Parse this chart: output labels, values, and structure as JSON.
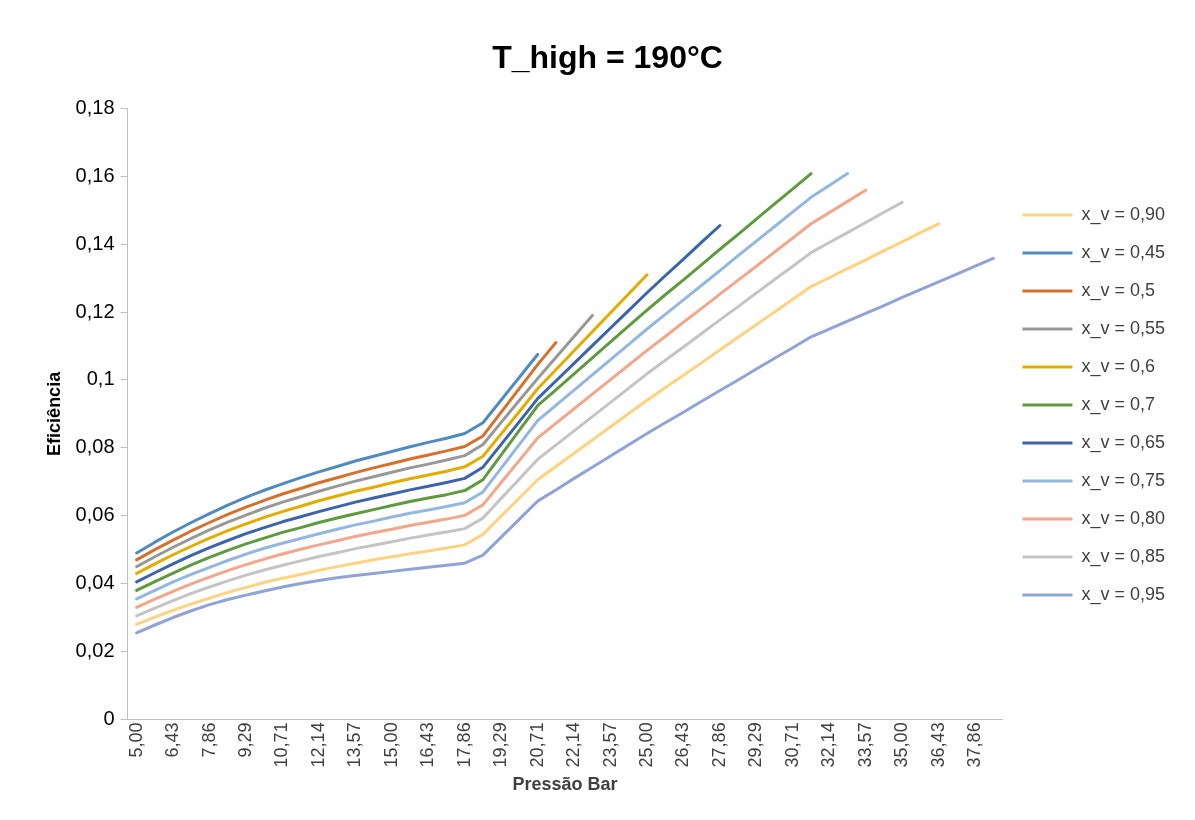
{
  "chart_data": {
    "type": "line",
    "title": "T_high = 190°C",
    "xlabel": "Pressão Bar",
    "ylabel": "Eficiência",
    "categories": [
      "5,00",
      null,
      "6,43",
      null,
      "7,86",
      null,
      "9,29",
      null,
      "10,71",
      null,
      "12,14",
      null,
      "13,57",
      null,
      "15,00",
      null,
      "16,43",
      null,
      "17,86",
      null,
      "19,29",
      null,
      "20,71",
      null,
      "22,14",
      null,
      "23,57",
      null,
      "25,00",
      null,
      "26,43",
      null,
      "27,86",
      null,
      "29,29",
      null,
      "30,71",
      null,
      "32,14",
      null,
      "33,57",
      null,
      "35,00",
      null,
      "36,43",
      null,
      "37,86",
      null
    ],
    "ylim": [
      0,
      0.18
    ],
    "yticks": [
      0,
      {
        "value": 0.02,
        "label": "0,02"
      },
      {
        "value": 0.04,
        "label": "0,04"
      },
      {
        "value": 0.06,
        "label": "0,06"
      },
      {
        "value": 0.08,
        "label": "0,08"
      },
      {
        "value": 0.1,
        "label": "0,1"
      },
      {
        "value": 0.12,
        "label": "0,12"
      },
      {
        "value": 0.14,
        "label": "0,14"
      },
      {
        "value": 0.16,
        "label": "0,16"
      },
      {
        "value": 0.18,
        "label": "0,18"
      }
    ],
    "grid": false,
    "legend": "right",
    "marker": "none",
    "line_style": "solid",
    "series": [
      {
        "name": "x_v = 0,90",
        "color": "#ffd280",
        "values": [
          0.028,
          0.0301,
          0.0321,
          0.034,
          0.0357,
          0.0374,
          0.0389,
          0.0403,
          0.0416,
          0.0427,
          0.0439,
          0.045,
          0.046,
          0.047,
          0.0479,
          0.0488,
          0.0496,
          0.0505,
          0.0514,
          0.0545,
          0.0599,
          0.0652,
          0.0706,
          0.0745,
          0.0784,
          0.0823,
          0.0862,
          0.0901,
          0.094,
          0.0977,
          0.1014,
          0.1051,
          0.1088,
          0.1126,
          0.1163,
          0.12,
          0.1238,
          0.1275,
          0.1301,
          0.1328,
          0.1354,
          0.1381,
          0.1407,
          0.1434,
          0.146,
          null,
          null,
          null
        ]
      },
      {
        "name": "x_v = 0,45",
        "color": "#4f8bc0",
        "values": [
          0.049,
          0.0522,
          0.0552,
          0.058,
          0.0606,
          0.0631,
          0.0654,
          0.0675,
          0.0694,
          0.0712,
          0.0729,
          0.0745,
          0.0761,
          0.0775,
          0.0789,
          0.0803,
          0.0816,
          0.0828,
          0.0842,
          0.0874,
          0.0941,
          0.1008,
          0.1075,
          null,
          null,
          null,
          null,
          null,
          null,
          null,
          null,
          null,
          null,
          null,
          null,
          null,
          null,
          null,
          null,
          null,
          null,
          null,
          null,
          null,
          null,
          null,
          null,
          null
        ]
      },
      {
        "name": "x_v = 0,5",
        "color": "#d8702c",
        "values": [
          0.047,
          0.05,
          0.0528,
          0.0555,
          0.058,
          0.0604,
          0.0625,
          0.0645,
          0.0664,
          0.068,
          0.0697,
          0.0712,
          0.0727,
          0.0741,
          0.0754,
          0.0767,
          0.0779,
          0.0791,
          0.0804,
          0.0835,
          0.0905,
          0.0975,
          0.1045,
          0.111,
          null,
          null,
          null,
          null,
          null,
          null,
          null,
          null,
          null,
          null,
          null,
          null,
          null,
          null,
          null,
          null,
          null,
          null,
          null,
          null,
          null,
          null,
          null,
          null
        ]
      },
      {
        "name": "x_v = 0,55",
        "color": "#989898",
        "values": [
          0.045,
          0.0479,
          0.0507,
          0.0533,
          0.0558,
          0.0581,
          0.0602,
          0.0622,
          0.064,
          0.0656,
          0.0672,
          0.0687,
          0.0702,
          0.0715,
          0.0728,
          0.0741,
          0.0752,
          0.0764,
          0.0777,
          0.081,
          0.0875,
          0.094,
          0.1004,
          0.1066,
          0.1128,
          0.119,
          null,
          null,
          null,
          null,
          null,
          null,
          null,
          null,
          null,
          null,
          null,
          null,
          null,
          null,
          null,
          null,
          null,
          null,
          null,
          null,
          null,
          null
        ]
      },
      {
        "name": "x_v = 0,6",
        "color": "#e4ab00",
        "values": [
          0.043,
          0.0458,
          0.0485,
          0.051,
          0.0534,
          0.0556,
          0.0576,
          0.0595,
          0.0612,
          0.0628,
          0.0644,
          0.0658,
          0.0672,
          0.0684,
          0.0697,
          0.0709,
          0.072,
          0.0731,
          0.0744,
          0.0775,
          0.0841,
          0.0907,
          0.0974,
          0.103,
          0.1086,
          0.1142,
          0.1198,
          0.1254,
          0.131,
          null,
          null,
          null,
          null,
          null,
          null,
          null,
          null,
          null,
          null,
          null,
          null,
          null,
          null,
          null,
          null,
          null,
          null,
          null
        ]
      },
      {
        "name": "x_v = 0,7",
        "color": "#5f9a3e",
        "values": [
          0.038,
          0.0406,
          0.0431,
          0.0455,
          0.0477,
          0.0498,
          0.0517,
          0.0534,
          0.0551,
          0.0565,
          0.058,
          0.0593,
          0.0606,
          0.0618,
          0.063,
          0.0642,
          0.0652,
          0.0662,
          0.0674,
          0.0706,
          0.0779,
          0.0852,
          0.0924,
          0.0971,
          0.1018,
          0.1065,
          0.1112,
          0.1159,
          0.1206,
          0.1251,
          0.1295,
          0.134,
          0.1385,
          0.1429,
          0.1474,
          0.1519,
          0.1563,
          0.1608,
          null,
          null,
          null,
          null,
          null,
          null,
          null,
          null,
          null,
          null
        ]
      },
      {
        "name": "x_v = 0,65",
        "color": "#3b64ad",
        "values": [
          0.0405,
          0.0432,
          0.0458,
          0.0483,
          0.0506,
          0.0527,
          0.0547,
          0.0565,
          0.0582,
          0.0597,
          0.0612,
          0.0626,
          0.064,
          0.0652,
          0.0664,
          0.0676,
          0.0687,
          0.0698,
          0.071,
          0.0743,
          0.081,
          0.0877,
          0.0945,
          0.0997,
          0.1049,
          0.1101,
          0.1153,
          0.1205,
          0.1257,
          0.1307,
          0.1356,
          0.1406,
          0.1455,
          null,
          null,
          null,
          null,
          null,
          null,
          null,
          null,
          null,
          null,
          null,
          null,
          null,
          null,
          null
        ]
      },
      {
        "name": "x_v = 0,75",
        "color": "#92b7e0",
        "values": [
          0.0355,
          0.038,
          0.0405,
          0.0427,
          0.0448,
          0.0468,
          0.0487,
          0.0504,
          0.0519,
          0.0533,
          0.0547,
          0.056,
          0.0573,
          0.0584,
          0.0596,
          0.0607,
          0.0617,
          0.0627,
          0.0638,
          0.067,
          0.074,
          0.081,
          0.088,
          0.0925,
          0.097,
          0.1015,
          0.106,
          0.1105,
          0.115,
          0.1193,
          0.1236,
          0.1279,
          0.1322,
          0.1366,
          0.1409,
          0.1452,
          0.1495,
          0.1538,
          0.1573,
          0.1608,
          null,
          null,
          null,
          null,
          null,
          null,
          null,
          null
        ]
      },
      {
        "name": "x_v = 0,80",
        "color": "#f2a68a",
        "values": [
          0.033,
          0.0354,
          0.0377,
          0.0399,
          0.0419,
          0.0438,
          0.0456,
          0.0472,
          0.0487,
          0.0501,
          0.0514,
          0.0526,
          0.0539,
          0.055,
          0.056,
          0.0571,
          0.0581,
          0.059,
          0.0601,
          0.0632,
          0.0698,
          0.0763,
          0.0829,
          0.0872,
          0.0915,
          0.0958,
          0.1001,
          0.1044,
          0.1087,
          0.1128,
          0.117,
          0.1211,
          0.1253,
          0.1294,
          0.1335,
          0.1377,
          0.1418,
          0.146,
          0.1493,
          0.1526,
          0.1559,
          null,
          null,
          null,
          null,
          null,
          null,
          null
        ]
      },
      {
        "name": "x_v = 0,85",
        "color": "#c4c4c4",
        "values": [
          0.0305,
          0.0328,
          0.035,
          0.0371,
          0.039,
          0.0408,
          0.0425,
          0.044,
          0.0454,
          0.0467,
          0.048,
          0.0491,
          0.0503,
          0.0513,
          0.0523,
          0.0534,
          0.0543,
          0.0552,
          0.0562,
          0.0593,
          0.0651,
          0.0708,
          0.0766,
          0.0808,
          0.085,
          0.0892,
          0.0934,
          0.0976,
          0.1018,
          0.1058,
          0.1097,
          0.1137,
          0.1177,
          0.1216,
          0.1256,
          0.1296,
          0.1335,
          0.1375,
          0.1405,
          0.1434,
          0.1464,
          0.1494,
          0.1523,
          null,
          null,
          null,
          null,
          null
        ]
      },
      {
        "name": "x_v = 0,95",
        "color": "#8fa3d7",
        "values": [
          0.0255,
          0.0278,
          0.03,
          0.032,
          0.0338,
          0.0353,
          0.0366,
          0.0378,
          0.039,
          0.04,
          0.0409,
          0.0417,
          0.0424,
          0.043,
          0.0436,
          0.0442,
          0.0448,
          0.0454,
          0.046,
          0.0484,
          0.0537,
          0.059,
          0.0643,
          0.0676,
          0.071,
          0.0743,
          0.0776,
          0.0809,
          0.0842,
          0.0874,
          0.0905,
          0.0937,
          0.0969,
          0.1,
          0.1032,
          0.1064,
          0.1095,
          0.1127,
          0.115,
          0.1173,
          0.1196,
          0.1219,
          0.1243,
          0.1266,
          0.1289,
          0.1312,
          0.1335,
          0.1358
        ]
      }
    ]
  }
}
